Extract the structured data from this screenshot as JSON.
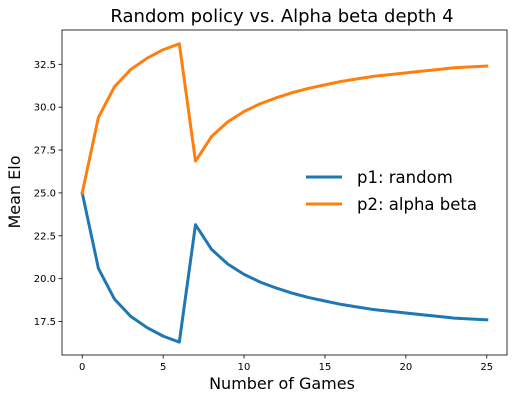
{
  "chart_data": {
    "type": "line",
    "title": "Random policy vs. Alpha beta depth 4",
    "xlabel": "Number of Games",
    "ylabel": "Mean Elo",
    "xlim": [
      -1.25,
      26.25
    ],
    "ylim": [
      15.55,
      34.5
    ],
    "xticks": [
      0,
      5,
      10,
      15,
      20,
      25
    ],
    "yticks": [
      17.5,
      20.0,
      22.5,
      25.0,
      27.5,
      30.0,
      32.5
    ],
    "grid": false,
    "legend_position": "center-right",
    "x": [
      0,
      1,
      2,
      3,
      4,
      5,
      6,
      7,
      8,
      9,
      10,
      11,
      12,
      13,
      14,
      15,
      16,
      17,
      18,
      19,
      20,
      21,
      22,
      23,
      24,
      25
    ],
    "series": [
      {
        "name": "p1: random",
        "color": "#1f77b4",
        "values": [
          25.0,
          20.6,
          18.8,
          17.8,
          17.15,
          16.65,
          16.3,
          23.15,
          21.7,
          20.85,
          20.25,
          19.8,
          19.45,
          19.15,
          18.9,
          18.7,
          18.5,
          18.35,
          18.2,
          18.1,
          18.0,
          17.9,
          17.8,
          17.7,
          17.65,
          17.6
        ]
      },
      {
        "name": "p2: alpha beta",
        "color": "#ff7f0e",
        "values": [
          25.0,
          29.4,
          31.2,
          32.2,
          32.85,
          33.35,
          33.7,
          26.85,
          28.3,
          29.15,
          29.75,
          30.2,
          30.55,
          30.85,
          31.1,
          31.3,
          31.5,
          31.65,
          31.8,
          31.9,
          32.0,
          32.1,
          32.2,
          32.3,
          32.35,
          32.4
        ]
      }
    ]
  }
}
